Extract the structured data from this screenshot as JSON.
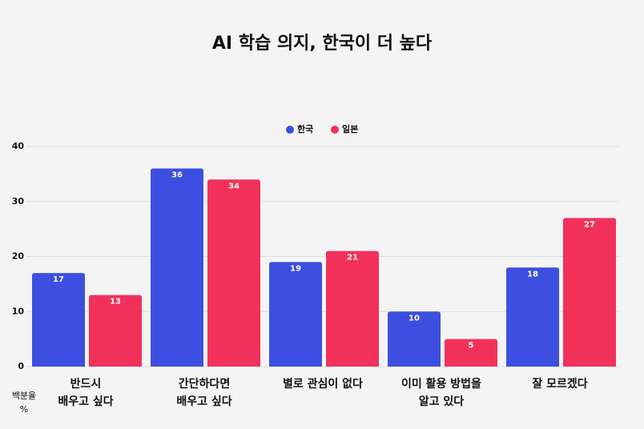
{
  "chart_data": {
    "type": "bar",
    "title": "AI 학습 의지, 한국이 더 높다",
    "categories": [
      [
        "반드시",
        "배우고 싶다"
      ],
      [
        "간단하다면",
        "배우고 싶다"
      ],
      [
        "별로 관심이 없다"
      ],
      [
        "이미 활용 방법을",
        "알고 있다"
      ],
      [
        "잘 모르겠다"
      ]
    ],
    "series": [
      {
        "name": "한국",
        "color": "#3d4fe0",
        "values": [
          17,
          36,
          19,
          10,
          18
        ]
      },
      {
        "name": "일본",
        "color": "#f2315a",
        "values": [
          13,
          34,
          21,
          5,
          27
        ]
      }
    ],
    "ylabel": [
      "백분율",
      "%"
    ],
    "ylim": [
      0,
      40
    ],
    "yticks": [
      0,
      10,
      20,
      30,
      40
    ],
    "grid": true,
    "legend": "top"
  }
}
